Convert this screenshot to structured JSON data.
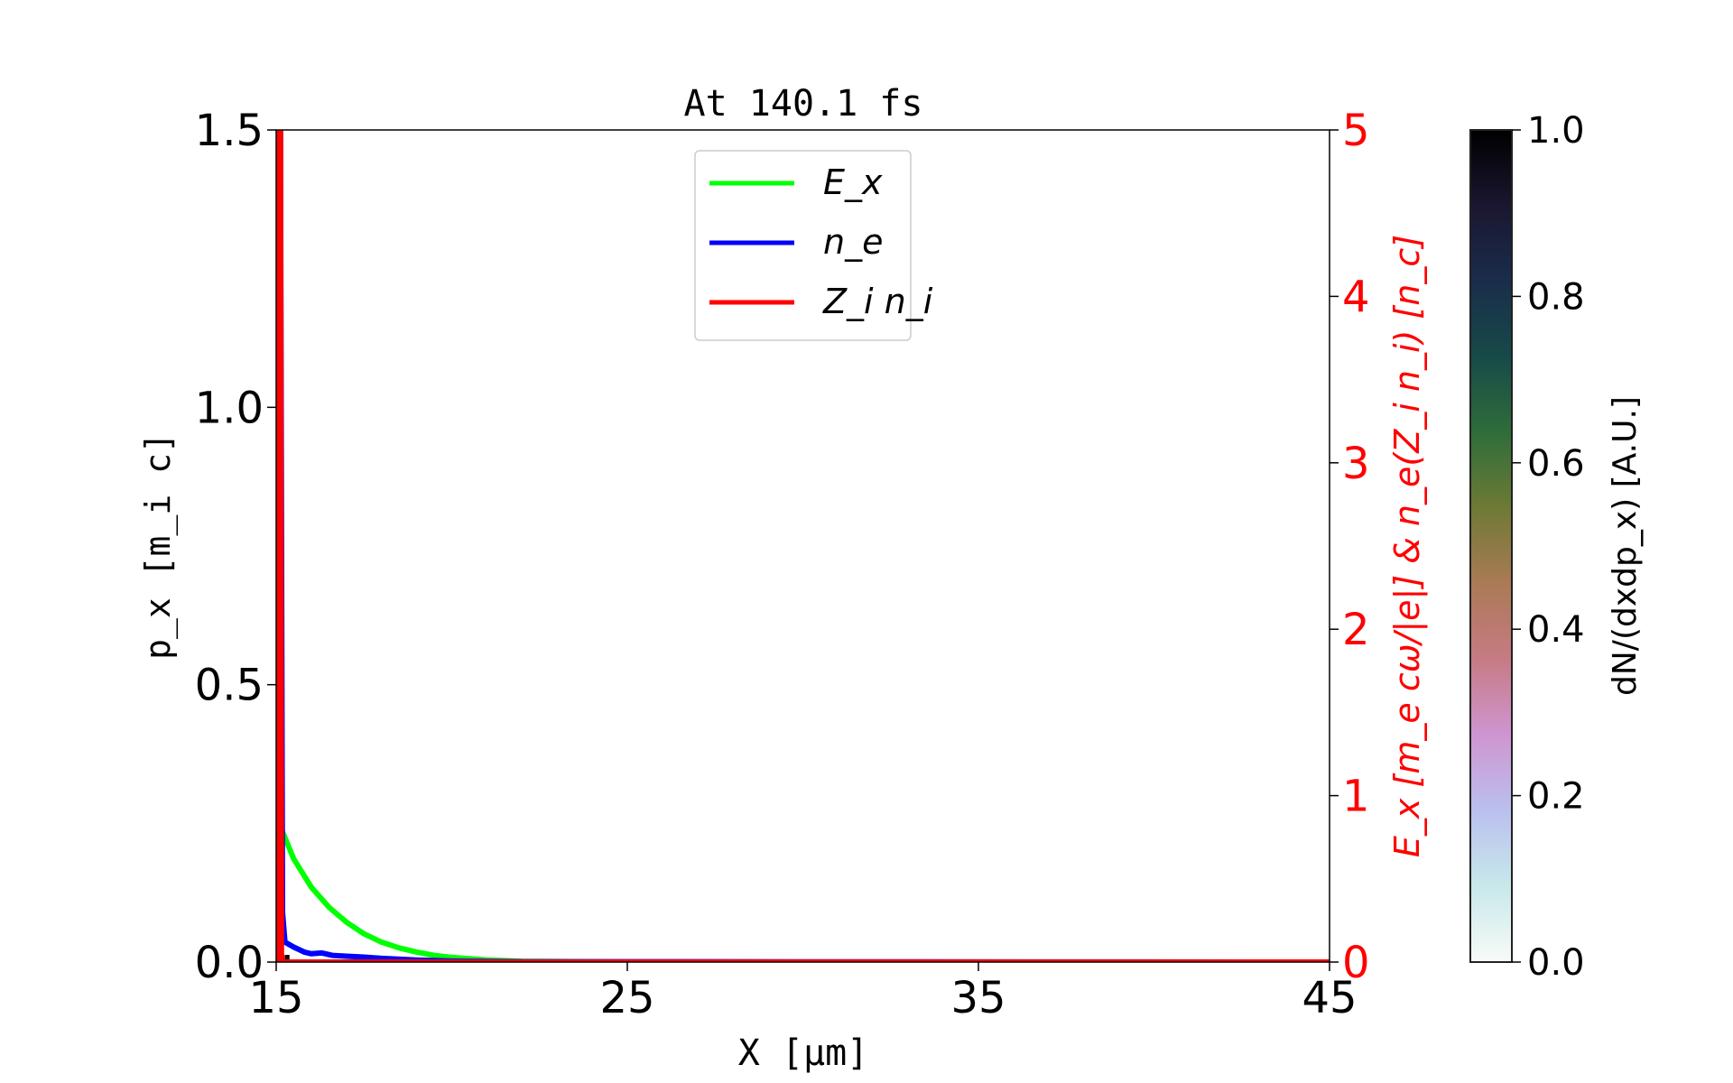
{
  "chart_data": {
    "type": "line",
    "title": "At 140.1 fs",
    "xlabel": "X  [μm]",
    "ylabel_left": "p_x  [m_i c]",
    "ylabel_right": "E_x  [m_e cω/|e|]  &  n_e(Z_i n_i)  [n_c]",
    "xlim": [
      15,
      45
    ],
    "ylim_left": [
      0,
      1.5
    ],
    "ylim_right": [
      0,
      5
    ],
    "x_ticks": [
      "15",
      "25",
      "35",
      "45"
    ],
    "x_tick_values": [
      15,
      25,
      35,
      45
    ],
    "y_left_ticks": [
      "0.0",
      "0.5",
      "1.0",
      "1.5"
    ],
    "y_left_tick_values": [
      0,
      0.5,
      1.0,
      1.5
    ],
    "y_right_ticks": [
      "0",
      "1",
      "2",
      "3",
      "4",
      "5"
    ],
    "y_right_tick_values": [
      0,
      1,
      2,
      3,
      4,
      5
    ],
    "grid": false,
    "legend_position": "top-center",
    "series": [
      {
        "name": "E_x",
        "color": "#00ff00",
        "axis": "right",
        "x": [
          15.15,
          15.5,
          16,
          16.5,
          17,
          17.5,
          18,
          18.5,
          19,
          19.5,
          20,
          21,
          22,
          25,
          45
        ],
        "y": [
          0.8,
          0.62,
          0.45,
          0.33,
          0.24,
          0.17,
          0.12,
          0.085,
          0.06,
          0.04,
          0.028,
          0.012,
          0.005,
          0,
          0
        ]
      },
      {
        "name": "n_e",
        "color": "#0000ff",
        "axis": "right",
        "x": [
          15.12,
          15.18,
          15.25,
          15.5,
          15.8,
          16,
          16.3,
          16.6,
          17,
          17.5,
          18,
          19,
          20,
          22,
          45
        ],
        "y": [
          5.0,
          0.3,
          0.12,
          0.09,
          0.06,
          0.05,
          0.055,
          0.04,
          0.035,
          0.03,
          0.022,
          0.012,
          0.006,
          0.002,
          0
        ]
      },
      {
        "name": "Z_i n_i",
        "color": "#ff0000",
        "axis": "right",
        "x": [
          15.05,
          15.08,
          15.12,
          15.15,
          15.2,
          45
        ],
        "y": [
          0,
          5.5,
          5.5,
          0.05,
          0,
          0
        ]
      }
    ],
    "colorbar": {
      "label": "dN/(dxdp_x)  [A.U.]",
      "range": [
        0,
        1
      ],
      "ticks": [
        "0.0",
        "0.2",
        "0.4",
        "0.6",
        "0.8",
        "1.0"
      ],
      "tick_values": [
        0,
        0.2,
        0.4,
        0.6,
        0.8,
        1.0
      ],
      "colors": [
        "#f8fbf7",
        "#c8e8ea",
        "#bac0ee",
        "#cf95d1",
        "#c67b84",
        "#ab7a56",
        "#6e7a35",
        "#2f6d3a",
        "#174a48",
        "#1a2d4b",
        "#1b1630",
        "#000000"
      ]
    }
  }
}
